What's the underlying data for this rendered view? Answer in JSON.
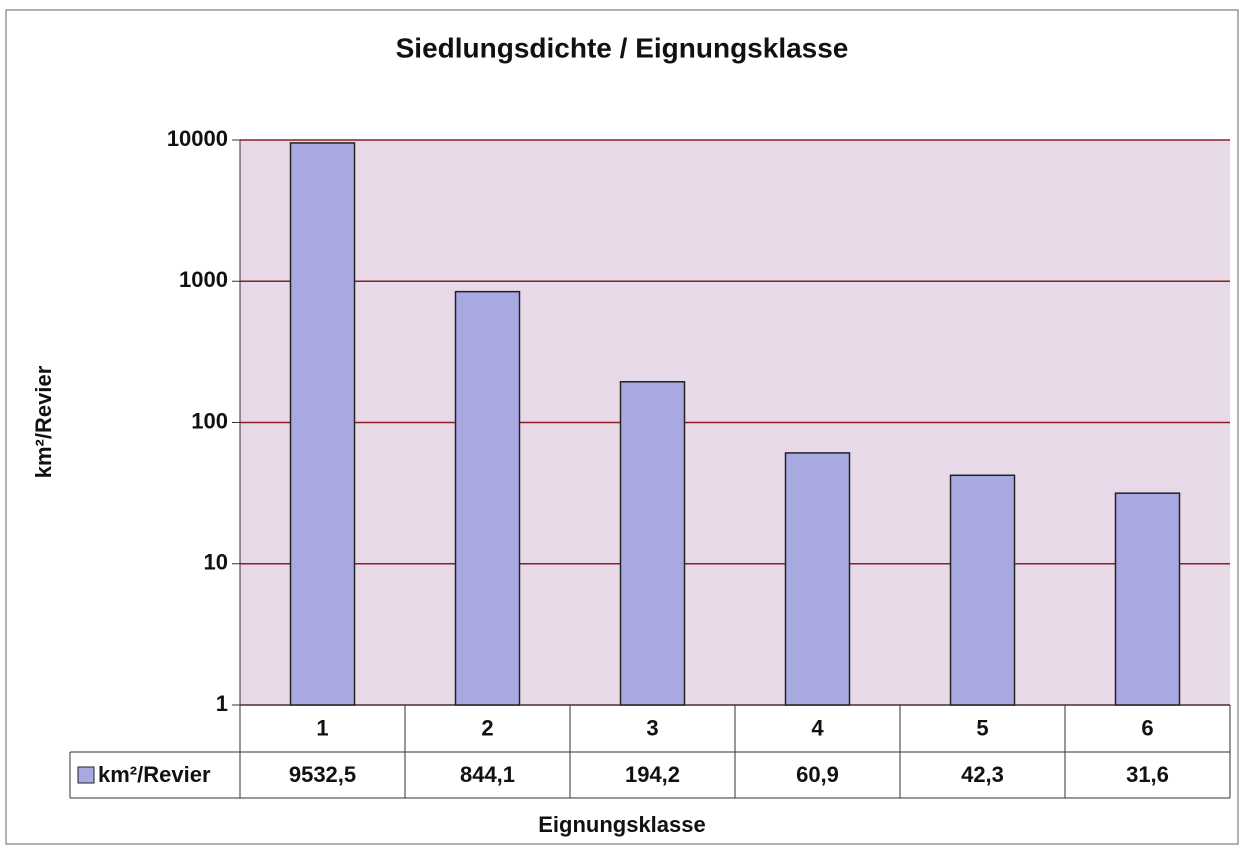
{
  "chart_data": {
    "type": "bar",
    "title": "Siedlungsdichte / Eignungsklasse",
    "xlabel": "Eignungsklasse",
    "ylabel": "km²/Revier",
    "categories": [
      "1",
      "2",
      "3",
      "4",
      "5",
      "6"
    ],
    "series": [
      {
        "name": "km²/Revier",
        "color": "#a9a9e2",
        "values": [
          9532.5,
          844.1,
          194.2,
          60.9,
          42.3,
          31.6
        ],
        "value_labels": [
          "9532,5",
          "844,1",
          "194,2",
          "60,9",
          "42,3",
          "31,6"
        ]
      }
    ],
    "ylim": [
      1,
      10000
    ],
    "yticks": [
      1,
      10,
      100,
      1000,
      10000
    ],
    "log_y": true,
    "grid": true,
    "legend": "table"
  }
}
